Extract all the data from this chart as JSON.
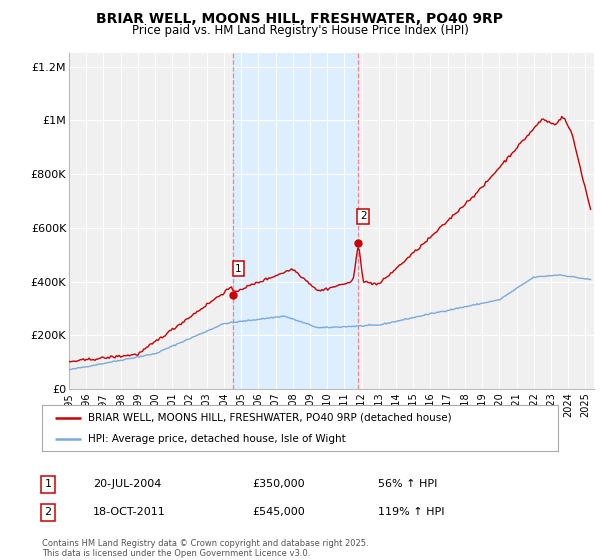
{
  "title": "BRIAR WELL, MOONS HILL, FRESHWATER, PO40 9RP",
  "subtitle": "Price paid vs. HM Land Registry's House Price Index (HPI)",
  "background_color": "#ffffff",
  "plot_bg_color": "#f0f0f0",
  "grid_color": "#ffffff",
  "red_color": "#cc0000",
  "blue_color": "#7aaadd",
  "highlight_bg": "#ddeeff",
  "dashed_color": "#ee8888",
  "ylim": [
    0,
    1250000
  ],
  "yticks": [
    0,
    200000,
    400000,
    600000,
    800000,
    1000000,
    1200000
  ],
  "ytick_labels": [
    "£0",
    "£200K",
    "£400K",
    "£600K",
    "£800K",
    "£1M",
    "£1.2M"
  ],
  "xmin": 1995,
  "xmax": 2025.5,
  "legend_red": "BRIAR WELL, MOONS HILL, FRESHWATER, PO40 9RP (detached house)",
  "legend_blue": "HPI: Average price, detached house, Isle of Wight",
  "sale1_x": 2004.55,
  "sale1_y": 350000,
  "sale1_label": "1",
  "sale1_date": "20-JUL-2004",
  "sale1_price": "£350,000",
  "sale1_hpi": "56% ↑ HPI",
  "sale2_x": 2011.8,
  "sale2_y": 545000,
  "sale2_label": "2",
  "sale2_date": "18-OCT-2011",
  "sale2_price": "£545,000",
  "sale2_hpi": "119% ↑ HPI",
  "footnote": "Contains HM Land Registry data © Crown copyright and database right 2025.\nThis data is licensed under the Open Government Licence v3.0.",
  "xticks": [
    1995,
    1996,
    1997,
    1998,
    1999,
    2000,
    2001,
    2002,
    2003,
    2004,
    2005,
    2006,
    2007,
    2008,
    2009,
    2010,
    2011,
    2012,
    2013,
    2014,
    2015,
    2016,
    2017,
    2018,
    2019,
    2020,
    2021,
    2022,
    2023,
    2024,
    2025
  ]
}
